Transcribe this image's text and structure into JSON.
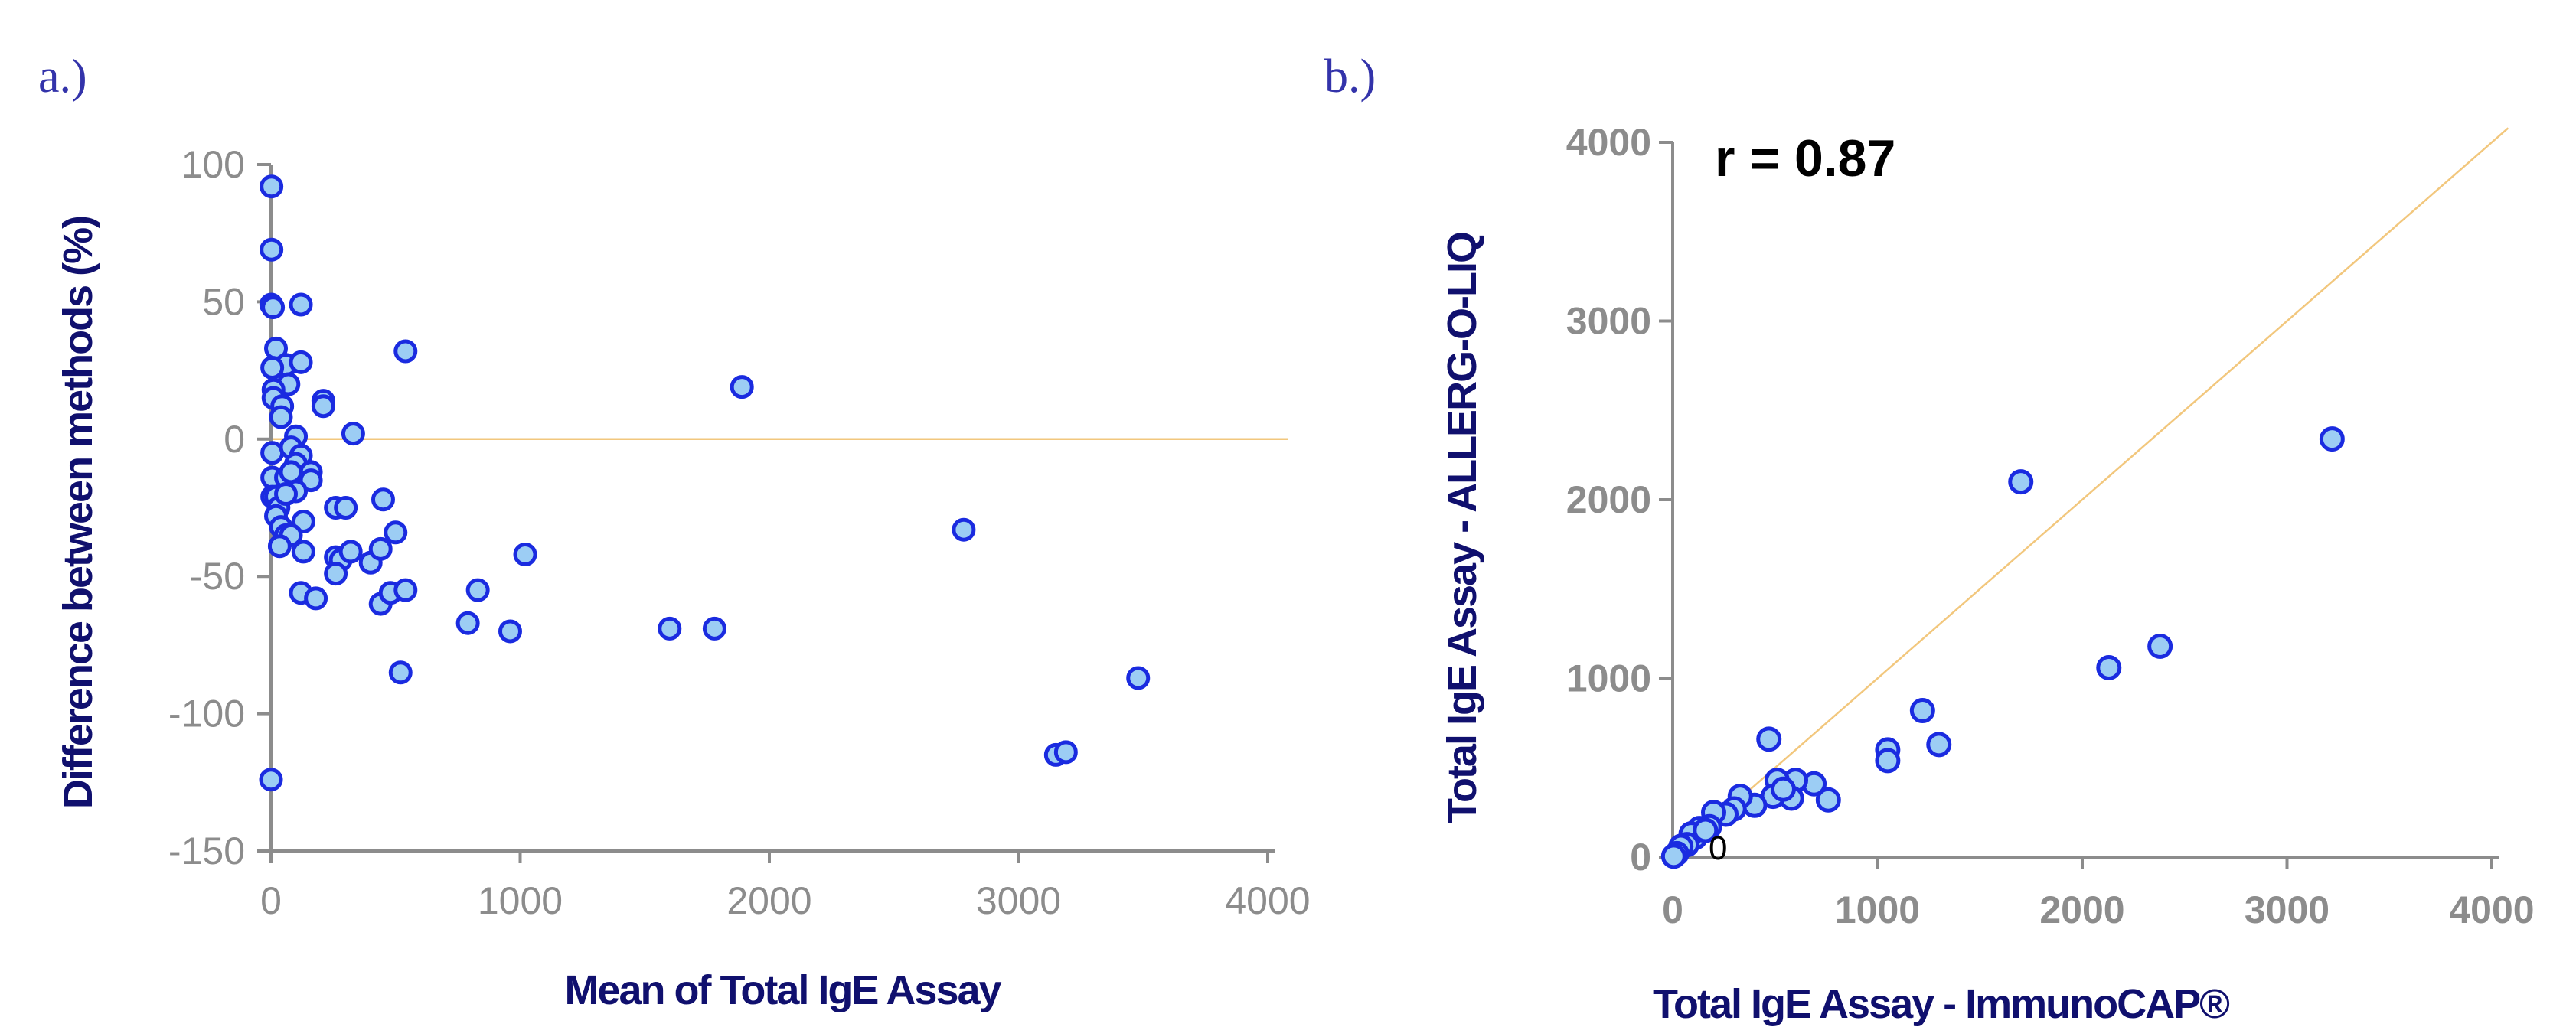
{
  "colors": {
    "point_fill": "#9ccdf4",
    "point_stroke": "#1a2be0",
    "reference_line": "#f2c77d",
    "axis": "#8c8c8c",
    "axis_title": "#10106e",
    "panel_label": "#3333aa"
  },
  "chart_data": [
    {
      "panel_label": "a.)",
      "type": "scatter",
      "xlabel": "Mean of Total IgE Assay",
      "ylabel": "Difference between methods (%)",
      "xlim": [
        0,
        4000
      ],
      "ylim": [
        -150,
        100
      ],
      "x_ticks": [
        "0",
        "1000",
        "2000",
        "3000",
        "4000"
      ],
      "y_ticks": [
        "100",
        "50",
        "0",
        "-50",
        "-100",
        "-150"
      ],
      "grid": false,
      "reference_line": {
        "type": "horizontal",
        "y": 0,
        "x_from": 0,
        "x_to": 4080
      },
      "series": [
        {
          "points": [
            [
              2,
              92
            ],
            [
              2,
              69
            ],
            [
              1,
              49
            ],
            [
              8,
              48
            ],
            [
              120,
              49
            ],
            [
              20,
              33
            ],
            [
              30,
              24
            ],
            [
              60,
              27
            ],
            [
              5,
              26
            ],
            [
              120,
              28
            ],
            [
              70,
              20
            ],
            [
              10,
              18
            ],
            [
              10,
              15
            ],
            [
              45,
              12
            ],
            [
              210,
              14
            ],
            [
              210,
              12
            ],
            [
              540,
              32
            ],
            [
              1890,
              19
            ],
            [
              40,
              8
            ],
            [
              100,
              1
            ],
            [
              330,
              2
            ],
            [
              5,
              -5
            ],
            [
              80,
              -3
            ],
            [
              120,
              -6
            ],
            [
              100,
              -9
            ],
            [
              5,
              -14
            ],
            [
              60,
              -14
            ],
            [
              80,
              -12
            ],
            [
              160,
              -12
            ],
            [
              160,
              -15
            ],
            [
              5,
              -21
            ],
            [
              20,
              -21
            ],
            [
              30,
              -25
            ],
            [
              20,
              -28
            ],
            [
              100,
              -19
            ],
            [
              60,
              -20
            ],
            [
              260,
              -25
            ],
            [
              300,
              -25
            ],
            [
              450,
              -22
            ],
            [
              130,
              -30
            ],
            [
              40,
              -32
            ],
            [
              60,
              -35
            ],
            [
              80,
              -35
            ],
            [
              35,
              -39
            ],
            [
              130,
              -41
            ],
            [
              260,
              -43
            ],
            [
              280,
              -44
            ],
            [
              320,
              -41
            ],
            [
              400,
              -45
            ],
            [
              440,
              -40
            ],
            [
              500,
              -34
            ],
            [
              260,
              -49
            ],
            [
              120,
              -56
            ],
            [
              180,
              -58
            ],
            [
              440,
              -60
            ],
            [
              480,
              -56
            ],
            [
              540,
              -55
            ],
            [
              830,
              -55
            ],
            [
              1020,
              -42
            ],
            [
              790,
              -67
            ],
            [
              960,
              -70
            ],
            [
              1600,
              -69
            ],
            [
              1780,
              -69
            ],
            [
              520,
              -85
            ],
            [
              2780,
              -33
            ],
            [
              3150,
              -115
            ],
            [
              3190,
              -114
            ],
            [
              3480,
              -87
            ],
            [
              0,
              -124
            ]
          ]
        }
      ]
    },
    {
      "panel_label": "b.)",
      "type": "scatter",
      "xlabel": "Total IgE Assay - ImmunoCAP®",
      "ylabel": "Total IgE Assay - ALLERG-O-LIQ",
      "xlim": [
        0,
        4000
      ],
      "ylim": [
        0,
        4000
      ],
      "x_ticks": [
        "0",
        "1000",
        "2000",
        "3000",
        "4000"
      ],
      "y_ticks": [
        "4000",
        "3000",
        "2000",
        "1000",
        "0"
      ],
      "grid": false,
      "annotation": "r = 0.87",
      "origin_label": "0",
      "reference_line": {
        "type": "identity",
        "from": [
          0,
          0
        ],
        "to": [
          4080,
          4080
        ]
      },
      "series": [
        {
          "points": [
            [
              3220,
              2340
            ],
            [
              1700,
              2100
            ],
            [
              2380,
              1180
            ],
            [
              2130,
              1060
            ],
            [
              1220,
              820
            ],
            [
              1050,
              600
            ],
            [
              1050,
              540
            ],
            [
              1300,
              630
            ],
            [
              470,
              660
            ],
            [
              760,
              320
            ],
            [
              690,
              410
            ],
            [
              600,
              430
            ],
            [
              580,
              330
            ],
            [
              510,
              430
            ],
            [
              490,
              340
            ],
            [
              540,
              380
            ],
            [
              400,
              290
            ],
            [
              330,
              340
            ],
            [
              300,
              270
            ],
            [
              260,
              240
            ],
            [
              200,
              250
            ],
            [
              180,
              170
            ],
            [
              130,
              160
            ],
            [
              110,
              110
            ],
            [
              90,
              130
            ],
            [
              70,
              70
            ],
            [
              40,
              60
            ],
            [
              20,
              20
            ],
            [
              5,
              5
            ],
            [
              160,
              150
            ]
          ]
        }
      ]
    }
  ]
}
